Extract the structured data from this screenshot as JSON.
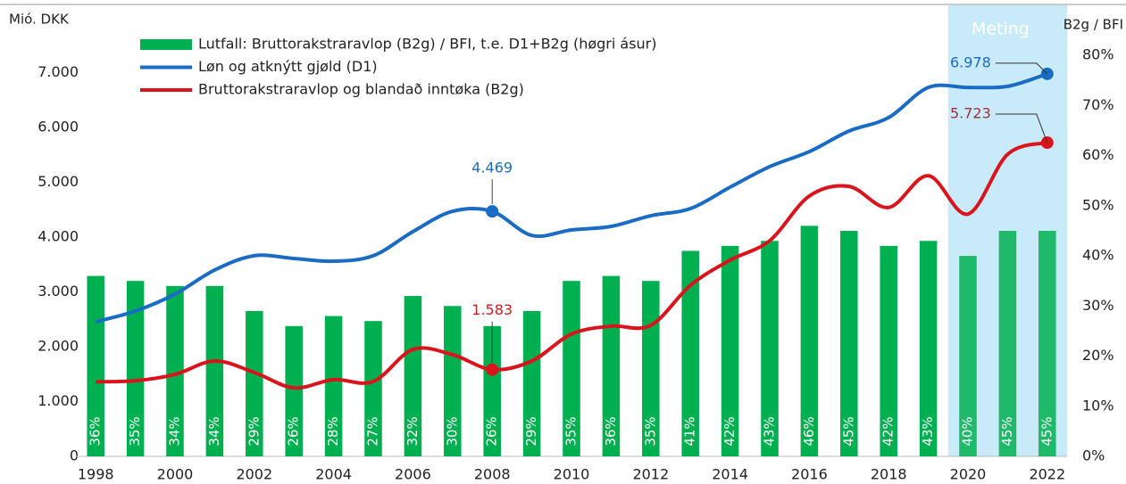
{
  "chart_data": {
    "type": "bar-line",
    "y_axis_label": "Mió. DKK",
    "y2_axis_label": "B2g / BFI",
    "x": [
      1998,
      1999,
      2000,
      2001,
      2002,
      2003,
      2004,
      2005,
      2006,
      2007,
      2008,
      2009,
      2010,
      2011,
      2012,
      2013,
      2014,
      2015,
      2016,
      2017,
      2018,
      2019,
      2020,
      2021,
      2022
    ],
    "xlim": [
      1997.5,
      2022.5
    ],
    "xticks": [
      1998,
      2000,
      2002,
      2004,
      2006,
      2008,
      2010,
      2012,
      2014,
      2016,
      2018,
      2020,
      2022
    ],
    "ylim": [
      0,
      8000
    ],
    "yticks": [
      0,
      {
        "value": 1000,
        "label": "1.000"
      },
      {
        "value": 2000,
        "label": "2.000"
      },
      {
        "value": 3000,
        "label": "3.000"
      },
      {
        "value": 4000,
        "label": "4.000"
      },
      {
        "value": 5000,
        "label": "5.000"
      },
      {
        "value": 6000,
        "label": "6.000"
      },
      {
        "value": 7000,
        "label": "7.000"
      }
    ],
    "y2lim": [
      0,
      87.5
    ],
    "y2ticks": [
      {
        "value": 0,
        "label": "0%"
      },
      {
        "value": 10,
        "label": "10%"
      },
      {
        "value": 20,
        "label": "20%"
      },
      {
        "value": 30,
        "label": "30%"
      },
      {
        "value": 40,
        "label": "40%"
      },
      {
        "value": 50,
        "label": "50%"
      },
      {
        "value": 60,
        "label": "60%"
      },
      {
        "value": 70,
        "label": "70%"
      },
      {
        "value": 80,
        "label": "80%"
      }
    ],
    "forecast_region": {
      "label": "Meting",
      "start": 2019.5,
      "end": 2022.5,
      "color": "#c9eaf8"
    },
    "series": [
      {
        "name": "Lutfall: Bruttorakstraravlop (B2g) / BFI, t.e. D1+B2g (høgri ásur)",
        "type": "bar",
        "axis": "y2",
        "color": "#00b050",
        "values": [
          36,
          35,
          34,
          34,
          29,
          26,
          28,
          27,
          32,
          30,
          26,
          29,
          35,
          36,
          35,
          41,
          42,
          43,
          46,
          45,
          42,
          43,
          40,
          45,
          45
        ],
        "value_labels": [
          "36%",
          "35%",
          "34%",
          "34%",
          "29%",
          "26%",
          "28%",
          "27%",
          "32%",
          "30%",
          "26%",
          "29%",
          "35%",
          "36%",
          "35%",
          "41%",
          "42%",
          "43%",
          "46%",
          "45%",
          "42%",
          "43%",
          "40%",
          "45%",
          "45%"
        ]
      },
      {
        "name": "Løn og atknýtt gjøld (D1)",
        "type": "line",
        "color": "#1a6bc4",
        "values": [
          2455,
          2650,
          2960,
          3400,
          3660,
          3610,
          3560,
          3660,
          4100,
          4470,
          4469,
          4030,
          4130,
          4195,
          4390,
          4520,
          4910,
          5285,
          5560,
          5935,
          6180,
          6730,
          6730,
          6750,
          6978
        ],
        "point_labels": [
          {
            "index": 10,
            "label": "4.469"
          },
          {
            "index": 24,
            "label": "6.978"
          }
        ]
      },
      {
        "name": "Bruttorakstraravlop og blandað inntøka (B2g)",
        "type": "line",
        "color": "#d9141c",
        "values": [
          1360,
          1380,
          1495,
          1740,
          1530,
          1250,
          1400,
          1365,
          1950,
          1855,
          1583,
          1740,
          2230,
          2375,
          2390,
          3120,
          3580,
          3935,
          4750,
          4925,
          4540,
          5120,
          4420,
          5510,
          5723
        ],
        "point_labels": [
          {
            "index": 10,
            "label": "1.583"
          },
          {
            "index": 24,
            "label": "5.723"
          }
        ]
      }
    ]
  }
}
